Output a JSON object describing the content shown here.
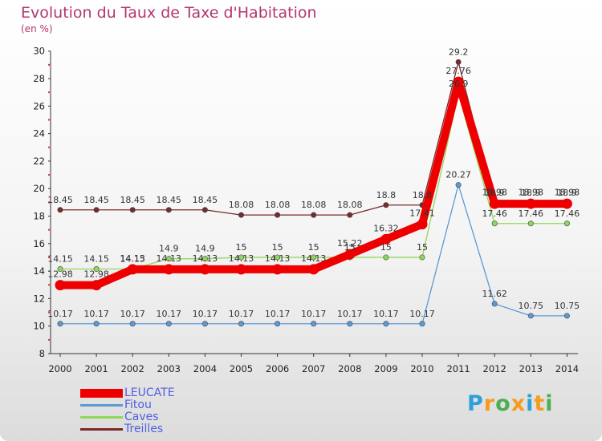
{
  "chart_data": {
    "type": "line",
    "title": "Evolution du Taux de Taxe d'Habitation",
    "subtitle": "(en %)",
    "xlabel": "",
    "ylabel": "",
    "categories": [
      "2000",
      "2001",
      "2002",
      "2003",
      "2004",
      "2005",
      "2006",
      "2007",
      "2008",
      "2009",
      "2010",
      "2011",
      "2012",
      "2013",
      "2014"
    ],
    "ylim": [
      8,
      30
    ],
    "yticks": [
      "8",
      "10",
      "12",
      "14",
      "16",
      "18",
      "20",
      "22",
      "24",
      "26",
      "28",
      "30"
    ],
    "grid": false,
    "legend_position": "bottom-left",
    "series": [
      {
        "name": "LEUCATE",
        "color": "#ee0000",
        "values": [
          12.98,
          12.98,
          14.13,
          14.13,
          14.13,
          14.13,
          14.13,
          14.13,
          15.22,
          16.32,
          17.41,
          27.76,
          18.9,
          18.9,
          18.9
        ],
        "labels": [
          "12.98",
          "12.98",
          "14.13",
          "14.13",
          "14.13",
          "14.13",
          "14.13",
          "14.13",
          "15.22",
          "16.32",
          "17.41",
          "27.76",
          "18.9",
          "18.9",
          "18.9"
        ]
      },
      {
        "name": "Fitou",
        "color": "#5b9bd5",
        "values": [
          10.17,
          10.17,
          10.17,
          10.17,
          10.17,
          10.17,
          10.17,
          10.17,
          10.17,
          10.17,
          10.17,
          20.27,
          11.62,
          10.75,
          10.75
        ],
        "labels": [
          "10.17",
          "10.17",
          "10.17",
          "10.17",
          "10.17",
          "10.17",
          "10.17",
          "10.17",
          "10.17",
          "10.17",
          "10.17",
          "20.27",
          "11.62",
          "10.75",
          "10.75"
        ]
      },
      {
        "name": "Caves",
        "color": "#8fd85a",
        "values": [
          14.15,
          14.15,
          14.15,
          14.9,
          14.9,
          15,
          15,
          15,
          15,
          15,
          15,
          26.9,
          17.46,
          17.46,
          17.46
        ],
        "labels": [
          "14.15",
          "14.15",
          "14.15",
          "14.9",
          "14.9",
          "15",
          "15",
          "15",
          "15",
          "15",
          "15",
          "26.9",
          "17.46",
          "17.46",
          "17.46"
        ]
      },
      {
        "name": "Treilles",
        "color": "#7a2a2a",
        "values": [
          18.45,
          18.45,
          18.45,
          18.45,
          18.45,
          18.08,
          18.08,
          18.08,
          18.08,
          18.8,
          18.8,
          29.2,
          18.98,
          18.98,
          18.98
        ],
        "labels": [
          "18.45",
          "18.45",
          "18.45",
          "18.45",
          "18.45",
          "18.08",
          "18.08",
          "18.08",
          "18.08",
          "18.8",
          "18.8",
          "29.2",
          "18.98",
          "18.98",
          "18.98"
        ]
      }
    ]
  },
  "logo": {
    "letters": [
      "P",
      "r",
      "o",
      "x",
      "i",
      "t",
      "i"
    ],
    "colors": [
      "#2f9fd8",
      "#f59b1e",
      "#4cb050",
      "#f59b1e",
      "#2f9fd8",
      "#f59b1e",
      "#4cb050"
    ]
  }
}
